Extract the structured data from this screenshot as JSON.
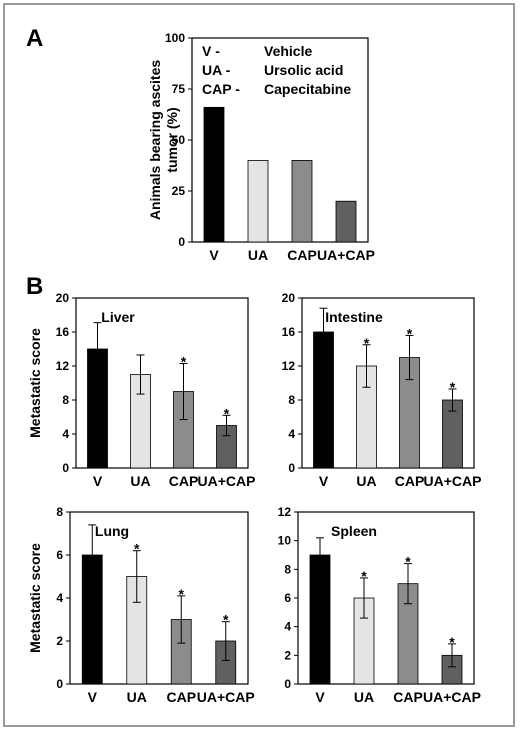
{
  "colors": {
    "V": "#000000",
    "UA": "#e4e4e4",
    "CAP": "#8c8c8c",
    "UA+CAP": "#606060"
  },
  "chart_data": [
    {
      "panel": "A",
      "type": "bar",
      "title": "",
      "ylabel_lines": [
        "Animals bearing ascites",
        "tumor (%)"
      ],
      "categories": [
        "V",
        "UA",
        "CAP",
        "UA+CAP"
      ],
      "values": [
        66,
        40,
        40,
        20
      ],
      "ylim": [
        0,
        100
      ],
      "yticks": [
        "0",
        "25",
        "50",
        "75",
        "100"
      ],
      "legend": [
        {
          "abbr": "V -",
          "name": "Vehicle"
        },
        {
          "abbr": "UA -",
          "name": "Ursolic acid"
        },
        {
          "abbr": "CAP -",
          "name": "Capecitabine"
        }
      ]
    },
    {
      "panel": "B",
      "type": "bar",
      "title": "Liver",
      "ylabel": "Metastatic score",
      "categories": [
        "V",
        "UA",
        "CAP",
        "UA+CAP"
      ],
      "values": [
        14,
        11,
        9,
        5
      ],
      "errors": [
        3.1,
        2.3,
        3.3,
        1.2
      ],
      "significance": [
        "",
        "",
        "*",
        "*"
      ],
      "ylim": [
        0,
        20
      ],
      "yticks": [
        "0",
        "4",
        "8",
        "12",
        "16",
        "20"
      ]
    },
    {
      "type": "bar",
      "title": "Intestine",
      "ylabel": "",
      "categories": [
        "V",
        "UA",
        "CAP",
        "UA+CAP"
      ],
      "values": [
        16,
        12,
        13,
        8
      ],
      "errors": [
        2.8,
        2.5,
        2.6,
        1.3
      ],
      "significance": [
        "",
        "*",
        "*",
        "*"
      ],
      "ylim": [
        0,
        20
      ],
      "yticks": [
        "0",
        "4",
        "8",
        "12",
        "16",
        "20"
      ]
    },
    {
      "type": "bar",
      "title": "Lung",
      "ylabel": "Metastatic score",
      "categories": [
        "V",
        "UA",
        "CAP",
        "UA+CAP"
      ],
      "values": [
        6,
        5,
        3,
        2
      ],
      "errors": [
        1.4,
        1.2,
        1.1,
        0.9
      ],
      "significance": [
        "",
        "*",
        "*",
        "*"
      ],
      "ylim": [
        0,
        8
      ],
      "yticks": [
        "0",
        "2",
        "4",
        "6",
        "8"
      ]
    },
    {
      "type": "bar",
      "title": "Spleen",
      "ylabel": "",
      "categories": [
        "V",
        "UA",
        "CAP",
        "UA+CAP"
      ],
      "values": [
        9,
        6,
        7,
        2
      ],
      "errors": [
        1.2,
        1.4,
        1.4,
        0.8
      ],
      "significance": [
        "",
        "*",
        "*",
        "*"
      ],
      "ylim": [
        0,
        12
      ],
      "yticks": [
        "0",
        "2",
        "4",
        "6",
        "8",
        "10",
        "12"
      ]
    }
  ]
}
